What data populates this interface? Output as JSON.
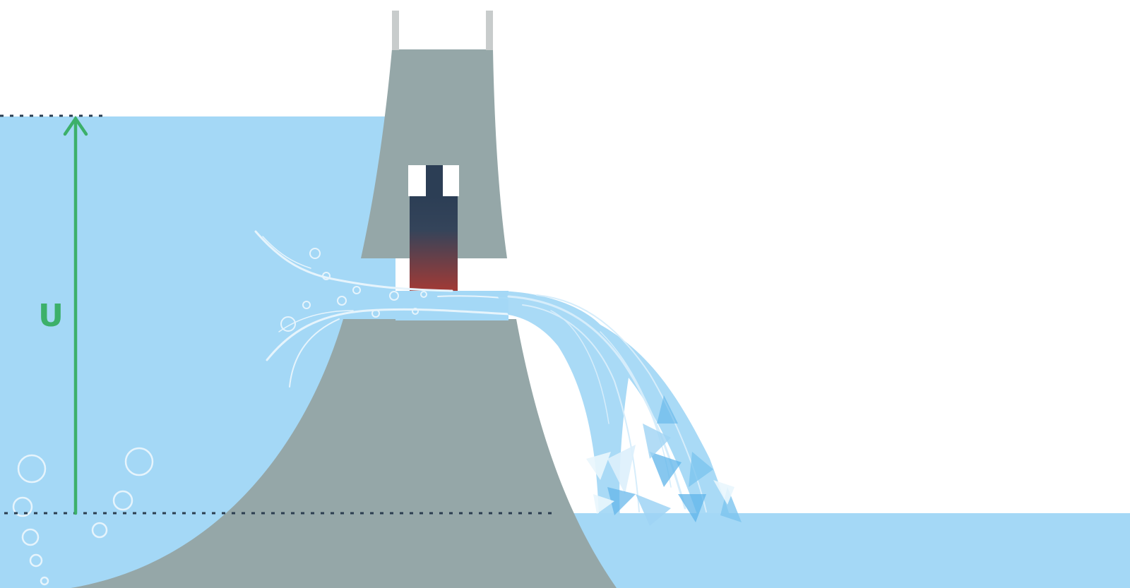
{
  "diagram": {
    "head_label": "U",
    "colors": {
      "water": "#a4d8f6",
      "dam": "#95a7a8",
      "arrow": "#3cb06a",
      "dotted_line": "#2c3e50",
      "gate_top": "#2c3e55",
      "gate_bottom": "#a33a35",
      "rails": "#c8cccc",
      "jet_light": "#cfe9fb",
      "splash": "#5fb4ea"
    },
    "icons": {
      "arrow": "arrow-up-icon",
      "bubbles": "bubble-icon"
    }
  }
}
